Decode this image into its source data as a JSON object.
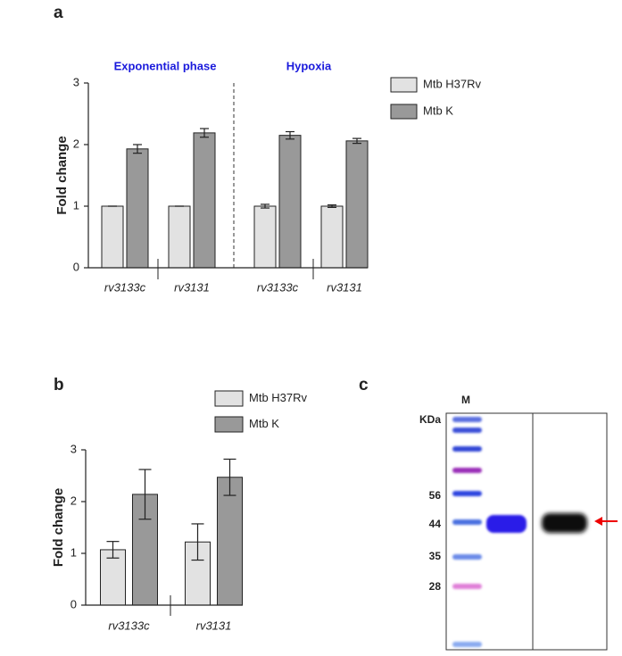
{
  "panels": [
    "a",
    "b",
    "c"
  ],
  "chart_data": [
    {
      "type": "bar",
      "y_label": "Fold change",
      "annotations": [
        "Exponential phase",
        "Hypoxia"
      ],
      "categories": [
        "rv3133c",
        "rv3131",
        "rv3133c",
        "rv3131"
      ],
      "series": [
        {
          "name": "Mtb H37Rv",
          "color": "#e2e2e2",
          "values": [
            1,
            1,
            1,
            1
          ],
          "errors": [
            0,
            0,
            0.03,
            0.02
          ]
        },
        {
          "name": "Mtb K",
          "color": "#999999",
          "values": [
            1.93,
            2.19,
            2.15,
            2.06
          ],
          "errors": [
            0.07,
            0.07,
            0.06,
            0.04
          ]
        }
      ],
      "ylim": [
        0,
        3
      ],
      "yticks": [
        0,
        1,
        2,
        3
      ]
    },
    {
      "type": "bar",
      "y_label": "Fold change",
      "categories": [
        "rv3133c",
        "rv3131"
      ],
      "series": [
        {
          "name": "Mtb H37Rv",
          "color": "#e2e2e2",
          "values": [
            1.07,
            1.22
          ],
          "errors": [
            0.16,
            0.35
          ]
        },
        {
          "name": "Mtb K",
          "color": "#999999",
          "values": [
            2.14,
            2.47
          ],
          "errors": [
            0.48,
            0.35
          ]
        }
      ],
      "ylim": [
        0,
        3
      ],
      "yticks": [
        0,
        1,
        2,
        3
      ]
    }
  ],
  "gel": {
    "lane_label": "M",
    "unit_label": "KDa",
    "markers": [
      56,
      44,
      35,
      28
    ]
  }
}
